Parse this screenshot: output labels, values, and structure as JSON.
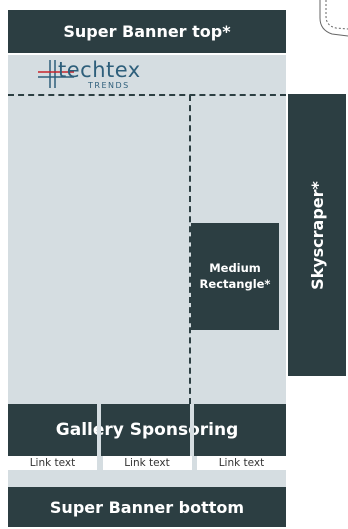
{
  "banners": {
    "top_label": "Super Banner top*",
    "bottom_label": "Super Banner bottom"
  },
  "skyscraper": {
    "label": "Skyscraper*"
  },
  "medium_rectangle": {
    "line1": "Medium",
    "line2": "Rectangle*"
  },
  "gallery": {
    "label": "Gallery Sponsoring"
  },
  "links": [
    "Link text",
    "Link text",
    "Link text"
  ],
  "logo": {
    "name": "techtex",
    "tagline": "TRENDS",
    "icon": "techtex-logo-mark"
  },
  "colors": {
    "block": "#2c3e42",
    "page": "#d5dde1",
    "logo_blue": "#2e5f7b",
    "logo_red": "#c8242b"
  }
}
